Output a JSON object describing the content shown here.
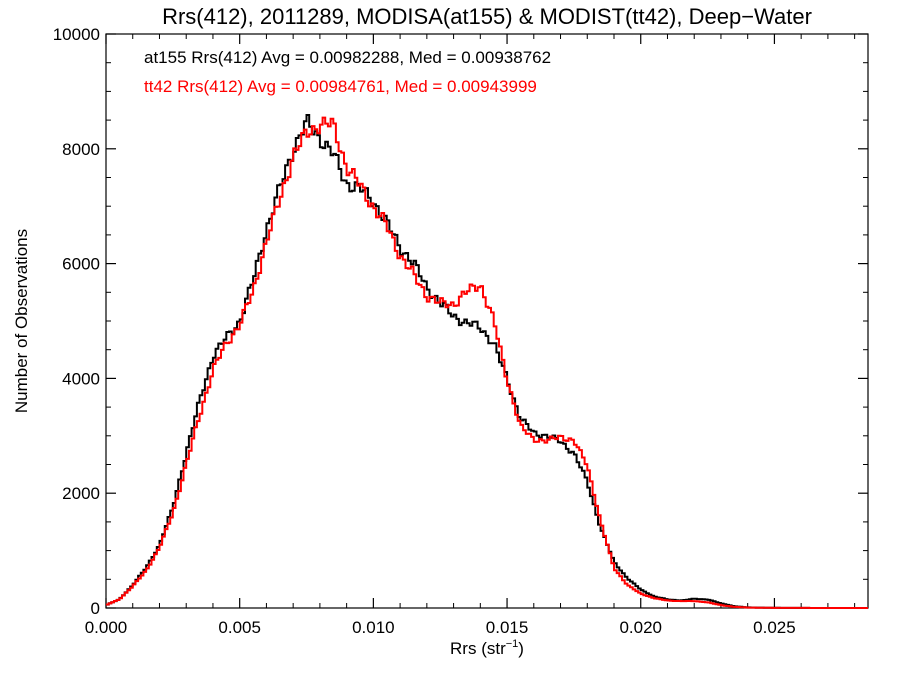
{
  "chart_data": {
    "type": "line",
    "title": "Rrs(412), 2011289, MODISA(at155) & MODIST(tt42), Deep−Water",
    "xlabel": "Rrs (str",
    "xlabel_sup": "−1",
    "xlabel_close": ")",
    "ylabel": "Number of Observations",
    "xlim": [
      0.0,
      0.0285
    ],
    "ylim": [
      0,
      10000
    ],
    "x_ticks": [
      0.0,
      0.005,
      0.01,
      0.015,
      0.02,
      0.025
    ],
    "x_tick_labels": [
      "0.000",
      "0.005",
      "0.010",
      "0.015",
      "0.020",
      "0.025"
    ],
    "y_ticks": [
      0,
      2000,
      4000,
      6000,
      8000,
      10000
    ],
    "y_tick_labels": [
      "0",
      "2000",
      "4000",
      "6000",
      "8000",
      "10000"
    ],
    "grid": false,
    "legend_placement": "top-left",
    "series": [
      {
        "name": "at155",
        "color": "#000000",
        "legend": "at155 Rrs(412) Avg = 0.00982288, Med = 0.00938762",
        "points": [
          [
            0.0,
            50
          ],
          [
            0.0005,
            150
          ],
          [
            0.001,
            400
          ],
          [
            0.0015,
            700
          ],
          [
            0.002,
            1100
          ],
          [
            0.0025,
            1750
          ],
          [
            0.003,
            2700
          ],
          [
            0.0035,
            3600
          ],
          [
            0.004,
            4400
          ],
          [
            0.0045,
            4700
          ],
          [
            0.005,
            5000
          ],
          [
            0.0055,
            5700
          ],
          [
            0.006,
            6600
          ],
          [
            0.0065,
            7300
          ],
          [
            0.007,
            8000
          ],
          [
            0.0075,
            8450
          ],
          [
            0.008,
            8200
          ],
          [
            0.0085,
            7900
          ],
          [
            0.009,
            7400
          ],
          [
            0.0095,
            7300
          ],
          [
            0.01,
            7100
          ],
          [
            0.0105,
            6700
          ],
          [
            0.011,
            6300
          ],
          [
            0.0115,
            6000
          ],
          [
            0.012,
            5600
          ],
          [
            0.0125,
            5300
          ],
          [
            0.013,
            5100
          ],
          [
            0.0135,
            4950
          ],
          [
            0.014,
            4900
          ],
          [
            0.0145,
            4600
          ],
          [
            0.015,
            4000
          ],
          [
            0.0155,
            3300
          ],
          [
            0.016,
            3050
          ],
          [
            0.0165,
            3000
          ],
          [
            0.017,
            2900
          ],
          [
            0.0175,
            2700
          ],
          [
            0.018,
            2200
          ],
          [
            0.0185,
            1400
          ],
          [
            0.019,
            800
          ],
          [
            0.0195,
            520
          ],
          [
            0.02,
            320
          ],
          [
            0.0205,
            200
          ],
          [
            0.021,
            150
          ],
          [
            0.0215,
            130
          ],
          [
            0.022,
            160
          ],
          [
            0.0225,
            150
          ],
          [
            0.023,
            80
          ],
          [
            0.0235,
            30
          ],
          [
            0.024,
            10
          ],
          [
            0.025,
            3
          ],
          [
            0.026,
            1
          ],
          [
            0.0285,
            0
          ]
        ]
      },
      {
        "name": "tt42",
        "color": "#ff0000",
        "legend": "tt42 Rrs(412) Avg = 0.00984761, Med = 0.00943999",
        "points": [
          [
            0.0,
            50
          ],
          [
            0.0005,
            150
          ],
          [
            0.001,
            380
          ],
          [
            0.0015,
            650
          ],
          [
            0.002,
            1050
          ],
          [
            0.0025,
            1650
          ],
          [
            0.003,
            2500
          ],
          [
            0.0035,
            3350
          ],
          [
            0.004,
            4150
          ],
          [
            0.0045,
            4600
          ],
          [
            0.005,
            4950
          ],
          [
            0.0055,
            5500
          ],
          [
            0.006,
            6400
          ],
          [
            0.0065,
            7100
          ],
          [
            0.007,
            7900
          ],
          [
            0.0075,
            8250
          ],
          [
            0.008,
            8450
          ],
          [
            0.0085,
            8400
          ],
          [
            0.009,
            7700
          ],
          [
            0.0095,
            7350
          ],
          [
            0.01,
            7000
          ],
          [
            0.0105,
            6650
          ],
          [
            0.011,
            6150
          ],
          [
            0.0115,
            5800
          ],
          [
            0.012,
            5450
          ],
          [
            0.0125,
            5300
          ],
          [
            0.013,
            5300
          ],
          [
            0.0135,
            5500
          ],
          [
            0.014,
            5650
          ],
          [
            0.0145,
            5000
          ],
          [
            0.015,
            4000
          ],
          [
            0.0155,
            3150
          ],
          [
            0.016,
            2950
          ],
          [
            0.0165,
            2900
          ],
          [
            0.017,
            3000
          ],
          [
            0.0175,
            2900
          ],
          [
            0.018,
            2500
          ],
          [
            0.0185,
            1500
          ],
          [
            0.019,
            700
          ],
          [
            0.0195,
            400
          ],
          [
            0.02,
            250
          ],
          [
            0.0205,
            170
          ],
          [
            0.021,
            130
          ],
          [
            0.0215,
            120
          ],
          [
            0.022,
            120
          ],
          [
            0.0225,
            100
          ],
          [
            0.023,
            50
          ],
          [
            0.0235,
            20
          ],
          [
            0.024,
            8
          ],
          [
            0.025,
            2
          ],
          [
            0.026,
            1
          ],
          [
            0.0285,
            0
          ]
        ]
      }
    ]
  }
}
